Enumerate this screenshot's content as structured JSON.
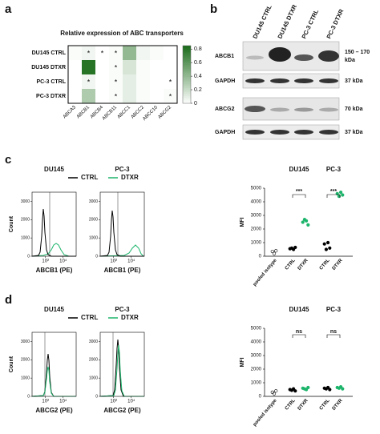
{
  "panels": {
    "a": {
      "label": "a",
      "title": "Relative expression of ABC transporters",
      "rows": [
        "DU145 CTRL",
        "DU145 DTXR",
        "PC-3 CTRL",
        "PC-3 DTXR"
      ],
      "columns": [
        "ABCA3",
        "ABCB1",
        "ABCB4",
        "ABCB11",
        "ABCC1",
        "ABCC2",
        "ABCC10",
        "ABCG2"
      ],
      "values": [
        [
          0.02,
          0.05,
          0.0,
          0.02,
          0.4,
          0.05,
          0.02,
          0.0
        ],
        [
          0.0,
          0.8,
          0.0,
          0.02,
          0.15,
          0.02,
          0.0,
          0.0
        ],
        [
          0.0,
          0.05,
          0.0,
          0.02,
          0.1,
          0.02,
          0.0,
          0.0
        ],
        [
          0.0,
          0.3,
          0.0,
          0.02,
          0.1,
          0.02,
          0.0,
          0.02
        ]
      ],
      "stars": [
        [
          null,
          "*",
          "*",
          "*",
          null,
          null,
          null,
          null
        ],
        [
          null,
          null,
          null,
          "*",
          null,
          null,
          null,
          null
        ],
        [
          null,
          "*",
          null,
          "*",
          null,
          null,
          null,
          "*"
        ],
        [
          null,
          null,
          null,
          "*",
          null,
          null,
          null,
          "*"
        ]
      ],
      "color": "#1a6b1a",
      "colorbar_lim": [
        0,
        0.85
      ],
      "colorbar_ticks": [
        0,
        0.2,
        0.4,
        0.6,
        0.8
      ]
    },
    "b": {
      "label": "b",
      "lanes": [
        "DU145 CTRL",
        "DU145 DTXR",
        "PC-3 CTRL",
        "PC-3 DTXR"
      ],
      "blots": [
        "ABCB1",
        "GAPDH",
        "ABCG2",
        "GAPDH"
      ],
      "sizes": [
        [
          "150 – 170",
          "kDa"
        ],
        [
          "37 kDa"
        ],
        [
          "70 kDa"
        ],
        [
          "37 kDa"
        ]
      ]
    },
    "c": {
      "label": "c",
      "hist": {
        "titles": [
          "DU145",
          "PC-3"
        ],
        "legend": [
          "CTRL",
          "DTXR"
        ],
        "colors": [
          "#000000",
          "#1db46b"
        ],
        "ylabel": "Count",
        "ylim": [
          0,
          3500
        ],
        "yticks": [
          0,
          1000,
          2000,
          3000
        ],
        "xlim": [
          3,
          300000
        ],
        "xticks": [
          {
            "value": 100,
            "label": "10²"
          },
          {
            "value": 10000,
            "label": "10⁴"
          }
        ],
        "xlabel": "ABCB1 (PE)"
      },
      "dots": {
        "titles": [
          "DU145",
          "PC-3"
        ],
        "ylabel": "MFI",
        "ylim": [
          0,
          5000
        ],
        "yticks": [
          0,
          1000,
          2000,
          3000,
          4000,
          5000
        ],
        "categories": [
          "pooled isotype",
          "CTRL",
          "DTXR",
          "CTRL",
          "DTXR"
        ],
        "groups": [
          [
            350,
            200,
            400
          ],
          [
            550,
            600,
            500,
            650
          ],
          [
            2500,
            2700,
            2600,
            2300
          ],
          [
            900,
            500,
            1000,
            600
          ],
          [
            4600,
            4400,
            4700,
            4500
          ]
        ],
        "colors": [
          "#000000",
          "#000000",
          "#1db46b",
          "#000000",
          "#1db46b"
        ],
        "markers": [
          "open",
          "filled",
          "filled",
          "filled",
          "filled"
        ],
        "significance": [
          "***",
          "***"
        ]
      }
    },
    "d": {
      "label": "d",
      "hist": {
        "titles": [
          "DU145",
          "PC-3"
        ],
        "legend": [
          "CTRL",
          "DTXR"
        ],
        "colors": [
          "#000000",
          "#1db46b"
        ],
        "ylabel": "Count",
        "ylim": [
          0,
          3500
        ],
        "yticks": [
          0,
          1000,
          2000,
          3000
        ],
        "xlim": [
          3,
          300000
        ],
        "xticks": [
          {
            "value": 100,
            "label": "10²"
          },
          {
            "value": 10000,
            "label": "10⁴"
          }
        ],
        "xlabel": "ABCG2 (PE)"
      },
      "dots": {
        "titles": [
          "DU145",
          "PC-3"
        ],
        "ylabel": "MFI",
        "ylim": [
          0,
          5000
        ],
        "yticks": [
          0,
          1000,
          2000,
          3000,
          4000,
          5000
        ],
        "categories": [
          "pooled isotype",
          "CTRL",
          "DTXR",
          "CTRL",
          "DTXR"
        ],
        "groups": [
          [
            300,
            200,
            400
          ],
          [
            500,
            450,
            550,
            400
          ],
          [
            600,
            550,
            500,
            650
          ],
          [
            600,
            550,
            650,
            500
          ],
          [
            650,
            600,
            700,
            550
          ]
        ],
        "colors": [
          "#000000",
          "#000000",
          "#1db46b",
          "#000000",
          "#1db46b"
        ],
        "markers": [
          "open",
          "filled",
          "filled",
          "filled",
          "filled"
        ],
        "significance": [
          "ns",
          "ns"
        ]
      }
    }
  }
}
